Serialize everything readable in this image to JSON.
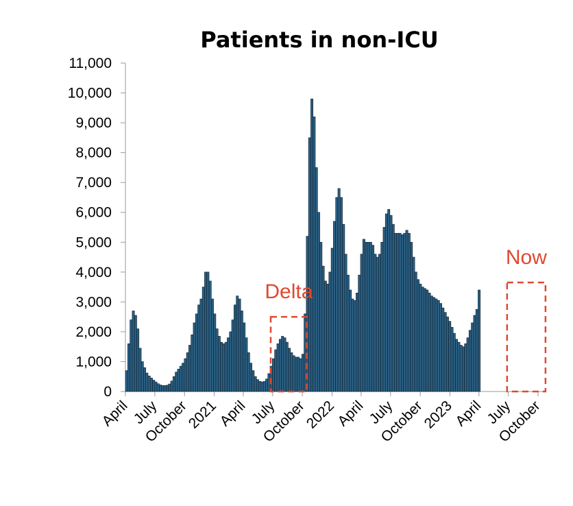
{
  "chart_data": {
    "type": "bar",
    "title": "Patients in non-ICU",
    "xlabel": "",
    "ylabel": "",
    "ylim": [
      0,
      11000
    ],
    "y_ticks": [
      {
        "value": 0,
        "label": "0"
      },
      {
        "value": 1000,
        "label": "1,000"
      },
      {
        "value": 2000,
        "label": "2,000"
      },
      {
        "value": 3000,
        "label": "3,000"
      },
      {
        "value": 4000,
        "label": "4,000"
      },
      {
        "value": 5000,
        "label": "5,000"
      },
      {
        "value": 6000,
        "label": "6,000"
      },
      {
        "value": 7000,
        "label": "7,000"
      },
      {
        "value": 8000,
        "label": "8,000"
      },
      {
        "value": 9000,
        "label": "9,000"
      },
      {
        "value": 10000,
        "label": "10,000"
      },
      {
        "value": 11000,
        "label": "11,000"
      }
    ],
    "x_range": [
      "2020-04-01",
      "2023-10-20"
    ],
    "x_ticks": [
      {
        "date": "2020-04-01",
        "label": "April"
      },
      {
        "date": "2020-07-01",
        "label": "July"
      },
      {
        "date": "2020-10-01",
        "label": "October"
      },
      {
        "date": "2021-01-01",
        "label": "2021"
      },
      {
        "date": "2021-04-01",
        "label": "April"
      },
      {
        "date": "2021-07-01",
        "label": "July"
      },
      {
        "date": "2021-10-01",
        "label": "October"
      },
      {
        "date": "2022-01-01",
        "label": "2022"
      },
      {
        "date": "2022-04-01",
        "label": "April"
      },
      {
        "date": "2022-07-01",
        "label": "July"
      },
      {
        "date": "2022-10-01",
        "label": "October"
      },
      {
        "date": "2023-01-01",
        "label": "2023"
      },
      {
        "date": "2023-04-01",
        "label": "April"
      },
      {
        "date": "2023-07-01",
        "label": "July"
      },
      {
        "date": "2023-10-01",
        "label": "October"
      }
    ],
    "series": [
      {
        "points": [
          [
            "2020-04-01",
            700
          ],
          [
            "2020-04-08",
            1600
          ],
          [
            "2020-04-15",
            2400
          ],
          [
            "2020-04-22",
            2700
          ],
          [
            "2020-04-29",
            2550
          ],
          [
            "2020-05-06",
            2100
          ],
          [
            "2020-05-13",
            1450
          ],
          [
            "2020-05-20",
            1000
          ],
          [
            "2020-05-27",
            800
          ],
          [
            "2020-06-03",
            620
          ],
          [
            "2020-06-10",
            520
          ],
          [
            "2020-06-17",
            450
          ],
          [
            "2020-06-24",
            380
          ],
          [
            "2020-07-01",
            320
          ],
          [
            "2020-07-08",
            260
          ],
          [
            "2020-07-15",
            220
          ],
          [
            "2020-07-22",
            200
          ],
          [
            "2020-07-29",
            200
          ],
          [
            "2020-08-05",
            210
          ],
          [
            "2020-08-12",
            250
          ],
          [
            "2020-08-19",
            350
          ],
          [
            "2020-08-26",
            500
          ],
          [
            "2020-09-02",
            650
          ],
          [
            "2020-09-09",
            750
          ],
          [
            "2020-09-16",
            850
          ],
          [
            "2020-09-23",
            950
          ],
          [
            "2020-09-30",
            1100
          ],
          [
            "2020-10-07",
            1300
          ],
          [
            "2020-10-14",
            1550
          ],
          [
            "2020-10-21",
            1900
          ],
          [
            "2020-10-28",
            2300
          ],
          [
            "2020-11-04",
            2600
          ],
          [
            "2020-11-11",
            2900
          ],
          [
            "2020-11-18",
            3100
          ],
          [
            "2020-11-25",
            3500
          ],
          [
            "2020-12-02",
            4000
          ],
          [
            "2020-12-09",
            4000
          ],
          [
            "2020-12-16",
            3700
          ],
          [
            "2020-12-23",
            3100
          ],
          [
            "2020-12-30",
            2600
          ],
          [
            "2021-01-06",
            2100
          ],
          [
            "2021-01-13",
            1850
          ],
          [
            "2021-01-20",
            1650
          ],
          [
            "2021-01-27",
            1600
          ],
          [
            "2021-02-03",
            1650
          ],
          [
            "2021-02-10",
            1800
          ],
          [
            "2021-02-17",
            2000
          ],
          [
            "2021-02-24",
            2400
          ],
          [
            "2021-03-03",
            2900
          ],
          [
            "2021-03-10",
            3200
          ],
          [
            "2021-03-17",
            3100
          ],
          [
            "2021-03-24",
            2700
          ],
          [
            "2021-03-31",
            2300
          ],
          [
            "2021-04-07",
            1800
          ],
          [
            "2021-04-14",
            1300
          ],
          [
            "2021-04-21",
            950
          ],
          [
            "2021-04-28",
            700
          ],
          [
            "2021-05-05",
            500
          ],
          [
            "2021-05-12",
            400
          ],
          [
            "2021-05-19",
            340
          ],
          [
            "2021-05-26",
            320
          ],
          [
            "2021-06-02",
            340
          ],
          [
            "2021-06-09",
            420
          ],
          [
            "2021-06-16",
            600
          ],
          [
            "2021-06-23",
            850
          ],
          [
            "2021-06-30",
            1100
          ],
          [
            "2021-07-07",
            1400
          ],
          [
            "2021-07-14",
            1600
          ],
          [
            "2021-07-21",
            1750
          ],
          [
            "2021-07-28",
            1850
          ],
          [
            "2021-08-04",
            1800
          ],
          [
            "2021-08-11",
            1650
          ],
          [
            "2021-08-18",
            1450
          ],
          [
            "2021-08-25",
            1300
          ],
          [
            "2021-09-01",
            1200
          ],
          [
            "2021-09-08",
            1150
          ],
          [
            "2021-09-15",
            1150
          ],
          [
            "2021-09-22",
            1100
          ],
          [
            "2021-09-29",
            1250
          ],
          [
            "2021-10-06",
            2600
          ],
          [
            "2021-10-13",
            5200
          ],
          [
            "2021-10-20",
            8500
          ],
          [
            "2021-10-27",
            9800
          ],
          [
            "2021-11-03",
            9200
          ],
          [
            "2021-11-10",
            7500
          ],
          [
            "2021-11-17",
            6000
          ],
          [
            "2021-11-24",
            5000
          ],
          [
            "2021-12-01",
            4200
          ],
          [
            "2021-12-08",
            3700
          ],
          [
            "2021-12-15",
            3600
          ],
          [
            "2021-12-22",
            4000
          ],
          [
            "2021-12-29",
            4800
          ],
          [
            "2022-01-05",
            5700
          ],
          [
            "2022-01-12",
            6500
          ],
          [
            "2022-01-19",
            6800
          ],
          [
            "2022-01-26",
            6500
          ],
          [
            "2022-02-02",
            5600
          ],
          [
            "2022-02-09",
            4600
          ],
          [
            "2022-02-16",
            3900
          ],
          [
            "2022-02-23",
            3400
          ],
          [
            "2022-03-02",
            3100
          ],
          [
            "2022-03-09",
            3050
          ],
          [
            "2022-03-16",
            3300
          ],
          [
            "2022-03-23",
            3900
          ],
          [
            "2022-03-30",
            4600
          ],
          [
            "2022-04-06",
            5100
          ],
          [
            "2022-04-13",
            5000
          ],
          [
            "2022-04-20",
            5000
          ],
          [
            "2022-04-27",
            5000
          ],
          [
            "2022-05-04",
            4900
          ],
          [
            "2022-05-11",
            4600
          ],
          [
            "2022-05-18",
            4500
          ],
          [
            "2022-05-25",
            4600
          ],
          [
            "2022-06-01",
            5000
          ],
          [
            "2022-06-08",
            5500
          ],
          [
            "2022-06-15",
            5950
          ],
          [
            "2022-06-22",
            6100
          ],
          [
            "2022-06-29",
            5900
          ],
          [
            "2022-07-06",
            5600
          ],
          [
            "2022-07-13",
            5300
          ],
          [
            "2022-07-20",
            5300
          ],
          [
            "2022-07-27",
            5300
          ],
          [
            "2022-08-03",
            5250
          ],
          [
            "2022-08-10",
            5300
          ],
          [
            "2022-08-17",
            5400
          ],
          [
            "2022-08-24",
            5300
          ],
          [
            "2022-08-31",
            5000
          ],
          [
            "2022-09-07",
            4500
          ],
          [
            "2022-09-14",
            4000
          ],
          [
            "2022-09-21",
            3750
          ],
          [
            "2022-09-28",
            3600
          ],
          [
            "2022-10-05",
            3500
          ],
          [
            "2022-10-12",
            3450
          ],
          [
            "2022-10-19",
            3400
          ],
          [
            "2022-10-26",
            3300
          ],
          [
            "2022-11-02",
            3200
          ],
          [
            "2022-11-09",
            3150
          ],
          [
            "2022-11-16",
            3100
          ],
          [
            "2022-11-23",
            3050
          ],
          [
            "2022-11-30",
            2950
          ],
          [
            "2022-12-07",
            2800
          ],
          [
            "2022-12-14",
            2650
          ],
          [
            "2022-12-21",
            2500
          ],
          [
            "2022-12-28",
            2350
          ],
          [
            "2023-01-04",
            2150
          ],
          [
            "2023-01-11",
            1950
          ],
          [
            "2023-01-18",
            1750
          ],
          [
            "2023-01-25",
            1650
          ],
          [
            "2023-02-01",
            1550
          ],
          [
            "2023-02-08",
            1500
          ],
          [
            "2023-02-15",
            1600
          ],
          [
            "2023-02-22",
            1800
          ],
          [
            "2023-03-01",
            2050
          ],
          [
            "2023-03-08",
            2300
          ],
          [
            "2023-03-15",
            2550
          ],
          [
            "2023-03-22",
            2750
          ],
          [
            "2023-03-29",
            3400
          ]
        ]
      }
    ],
    "bar_color": "#2b5f82",
    "bar_edge_color": "#0b1c2a",
    "grid": false,
    "annotations": [
      {
        "label": "Delta",
        "color": "#e0482f",
        "x_start": "2021-06-25",
        "x_end": "2021-10-15",
        "y_top": 2500
      },
      {
        "label": "Now",
        "color": "#e0482f",
        "x_start": "2023-06-27",
        "x_end": "2023-10-24",
        "y_top": 3650
      }
    ]
  }
}
